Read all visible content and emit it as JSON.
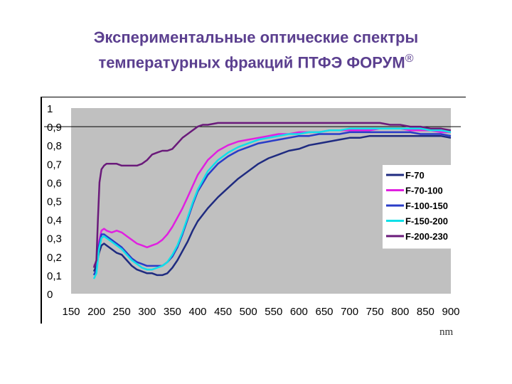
{
  "title": {
    "line1": "Экспериментальные оптические спектры",
    "line2": "температурных фракций ПТФЭ ФОРУМ",
    "reg_mark": "®"
  },
  "unit_label": "nm",
  "chart_data": {
    "type": "line",
    "xlim": [
      150,
      900
    ],
    "ylim": [
      0,
      1
    ],
    "x_ticks": [
      "150",
      "200",
      "250",
      "300",
      "350",
      "400",
      "450",
      "500",
      "550",
      "600",
      "650",
      "700",
      "750",
      "800",
      "850",
      "900"
    ],
    "y_ticks": [
      "0",
      "0,1",
      "0,2",
      "0,3",
      "0,4",
      "0,5",
      "0,6",
      "0,7",
      "0,8",
      "0,9",
      "1"
    ],
    "gridlines_y": [
      0.9
    ],
    "plot_bg": "#c0c0c0",
    "legend_position": "right",
    "series": [
      {
        "name": "F-70",
        "color": "#1f2b80",
        "points": [
          [
            195,
            0.12
          ],
          [
            200,
            0.15
          ],
          [
            205,
            0.22
          ],
          [
            210,
            0.26
          ],
          [
            215,
            0.27
          ],
          [
            220,
            0.26
          ],
          [
            230,
            0.24
          ],
          [
            240,
            0.22
          ],
          [
            250,
            0.21
          ],
          [
            260,
            0.18
          ],
          [
            270,
            0.15
          ],
          [
            280,
            0.13
          ],
          [
            290,
            0.12
          ],
          [
            300,
            0.11
          ],
          [
            310,
            0.11
          ],
          [
            320,
            0.1
          ],
          [
            330,
            0.1
          ],
          [
            340,
            0.11
          ],
          [
            350,
            0.14
          ],
          [
            360,
            0.18
          ],
          [
            370,
            0.23
          ],
          [
            380,
            0.28
          ],
          [
            390,
            0.34
          ],
          [
            400,
            0.39
          ],
          [
            420,
            0.46
          ],
          [
            440,
            0.52
          ],
          [
            460,
            0.57
          ],
          [
            480,
            0.62
          ],
          [
            500,
            0.66
          ],
          [
            520,
            0.7
          ],
          [
            540,
            0.73
          ],
          [
            560,
            0.75
          ],
          [
            580,
            0.77
          ],
          [
            600,
            0.78
          ],
          [
            620,
            0.8
          ],
          [
            640,
            0.81
          ],
          [
            660,
            0.82
          ],
          [
            680,
            0.83
          ],
          [
            700,
            0.84
          ],
          [
            720,
            0.84
          ],
          [
            740,
            0.85
          ],
          [
            760,
            0.85
          ],
          [
            780,
            0.85
          ],
          [
            800,
            0.85
          ],
          [
            820,
            0.85
          ],
          [
            840,
            0.85
          ],
          [
            860,
            0.85
          ],
          [
            880,
            0.85
          ],
          [
            900,
            0.84
          ]
        ]
      },
      {
        "name": "F-70-100",
        "color": "#e020e0",
        "points": [
          [
            195,
            0.15
          ],
          [
            200,
            0.17
          ],
          [
            205,
            0.28
          ],
          [
            210,
            0.34
          ],
          [
            215,
            0.35
          ],
          [
            220,
            0.34
          ],
          [
            230,
            0.33
          ],
          [
            240,
            0.34
          ],
          [
            250,
            0.33
          ],
          [
            260,
            0.31
          ],
          [
            270,
            0.29
          ],
          [
            280,
            0.27
          ],
          [
            290,
            0.26
          ],
          [
            300,
            0.25
          ],
          [
            310,
            0.26
          ],
          [
            320,
            0.27
          ],
          [
            330,
            0.29
          ],
          [
            340,
            0.32
          ],
          [
            350,
            0.36
          ],
          [
            360,
            0.41
          ],
          [
            370,
            0.46
          ],
          [
            380,
            0.52
          ],
          [
            390,
            0.58
          ],
          [
            400,
            0.64
          ],
          [
            420,
            0.72
          ],
          [
            440,
            0.77
          ],
          [
            460,
            0.8
          ],
          [
            480,
            0.82
          ],
          [
            500,
            0.83
          ],
          [
            520,
            0.84
          ],
          [
            540,
            0.85
          ],
          [
            560,
            0.86
          ],
          [
            580,
            0.86
          ],
          [
            600,
            0.87
          ],
          [
            620,
            0.87
          ],
          [
            640,
            0.87
          ],
          [
            660,
            0.88
          ],
          [
            680,
            0.88
          ],
          [
            700,
            0.88
          ],
          [
            720,
            0.88
          ],
          [
            740,
            0.88
          ],
          [
            760,
            0.89
          ],
          [
            780,
            0.89
          ],
          [
            800,
            0.89
          ],
          [
            820,
            0.88
          ],
          [
            840,
            0.88
          ],
          [
            860,
            0.88
          ],
          [
            880,
            0.87
          ],
          [
            900,
            0.87
          ]
        ]
      },
      {
        "name": "F-100-150",
        "color": "#2a3cc8",
        "points": [
          [
            195,
            0.1
          ],
          [
            200,
            0.13
          ],
          [
            205,
            0.26
          ],
          [
            210,
            0.32
          ],
          [
            215,
            0.32
          ],
          [
            220,
            0.31
          ],
          [
            230,
            0.29
          ],
          [
            240,
            0.27
          ],
          [
            250,
            0.25
          ],
          [
            260,
            0.22
          ],
          [
            270,
            0.19
          ],
          [
            280,
            0.17
          ],
          [
            290,
            0.16
          ],
          [
            300,
            0.15
          ],
          [
            310,
            0.15
          ],
          [
            320,
            0.15
          ],
          [
            330,
            0.15
          ],
          [
            340,
            0.17
          ],
          [
            350,
            0.2
          ],
          [
            360,
            0.25
          ],
          [
            370,
            0.32
          ],
          [
            380,
            0.4
          ],
          [
            390,
            0.48
          ],
          [
            400,
            0.55
          ],
          [
            420,
            0.64
          ],
          [
            440,
            0.7
          ],
          [
            460,
            0.74
          ],
          [
            480,
            0.77
          ],
          [
            500,
            0.79
          ],
          [
            520,
            0.81
          ],
          [
            540,
            0.82
          ],
          [
            560,
            0.83
          ],
          [
            580,
            0.84
          ],
          [
            600,
            0.85
          ],
          [
            620,
            0.85
          ],
          [
            640,
            0.86
          ],
          [
            660,
            0.86
          ],
          [
            680,
            0.86
          ],
          [
            700,
            0.87
          ],
          [
            720,
            0.87
          ],
          [
            740,
            0.87
          ],
          [
            760,
            0.87
          ],
          [
            780,
            0.87
          ],
          [
            800,
            0.87
          ],
          [
            820,
            0.87
          ],
          [
            840,
            0.86
          ],
          [
            860,
            0.86
          ],
          [
            880,
            0.86
          ],
          [
            900,
            0.85
          ]
        ]
      },
      {
        "name": "F-150-200",
        "color": "#10e0e8",
        "points": [
          [
            195,
            0.08
          ],
          [
            200,
            0.11
          ],
          [
            205,
            0.24
          ],
          [
            210,
            0.3
          ],
          [
            215,
            0.31
          ],
          [
            220,
            0.3
          ],
          [
            230,
            0.28
          ],
          [
            240,
            0.26
          ],
          [
            250,
            0.24
          ],
          [
            260,
            0.21
          ],
          [
            270,
            0.18
          ],
          [
            280,
            0.16
          ],
          [
            290,
            0.14
          ],
          [
            300,
            0.13
          ],
          [
            310,
            0.13
          ],
          [
            320,
            0.14
          ],
          [
            330,
            0.15
          ],
          [
            340,
            0.17
          ],
          [
            350,
            0.21
          ],
          [
            360,
            0.26
          ],
          [
            370,
            0.33
          ],
          [
            380,
            0.41
          ],
          [
            390,
            0.49
          ],
          [
            400,
            0.56
          ],
          [
            420,
            0.66
          ],
          [
            440,
            0.72
          ],
          [
            460,
            0.76
          ],
          [
            480,
            0.79
          ],
          [
            500,
            0.81
          ],
          [
            520,
            0.83
          ],
          [
            540,
            0.84
          ],
          [
            560,
            0.85
          ],
          [
            580,
            0.86
          ],
          [
            600,
            0.86
          ],
          [
            620,
            0.87
          ],
          [
            640,
            0.87
          ],
          [
            660,
            0.88
          ],
          [
            680,
            0.88
          ],
          [
            700,
            0.89
          ],
          [
            720,
            0.89
          ],
          [
            740,
            0.89
          ],
          [
            760,
            0.89
          ],
          [
            780,
            0.89
          ],
          [
            800,
            0.89
          ],
          [
            820,
            0.89
          ],
          [
            840,
            0.89
          ],
          [
            860,
            0.88
          ],
          [
            880,
            0.88
          ],
          [
            900,
            0.87
          ]
        ]
      },
      {
        "name": "F-200-230",
        "color": "#6a1a7a",
        "points": [
          [
            195,
            0.14
          ],
          [
            200,
            0.18
          ],
          [
            203,
            0.4
          ],
          [
            206,
            0.6
          ],
          [
            210,
            0.67
          ],
          [
            215,
            0.69
          ],
          [
            220,
            0.7
          ],
          [
            230,
            0.7
          ],
          [
            240,
            0.7
          ],
          [
            250,
            0.69
          ],
          [
            260,
            0.69
          ],
          [
            270,
            0.69
          ],
          [
            280,
            0.69
          ],
          [
            290,
            0.7
          ],
          [
            300,
            0.72
          ],
          [
            310,
            0.75
          ],
          [
            320,
            0.76
          ],
          [
            330,
            0.77
          ],
          [
            340,
            0.77
          ],
          [
            350,
            0.78
          ],
          [
            360,
            0.81
          ],
          [
            370,
            0.84
          ],
          [
            380,
            0.86
          ],
          [
            390,
            0.88
          ],
          [
            400,
            0.9
          ],
          [
            410,
            0.91
          ],
          [
            420,
            0.91
          ],
          [
            440,
            0.92
          ],
          [
            460,
            0.92
          ],
          [
            480,
            0.92
          ],
          [
            500,
            0.92
          ],
          [
            520,
            0.92
          ],
          [
            540,
            0.92
          ],
          [
            560,
            0.92
          ],
          [
            580,
            0.92
          ],
          [
            600,
            0.92
          ],
          [
            620,
            0.92
          ],
          [
            640,
            0.92
          ],
          [
            660,
            0.92
          ],
          [
            680,
            0.92
          ],
          [
            700,
            0.92
          ],
          [
            720,
            0.92
          ],
          [
            740,
            0.92
          ],
          [
            760,
            0.92
          ],
          [
            780,
            0.91
          ],
          [
            800,
            0.91
          ],
          [
            820,
            0.9
          ],
          [
            840,
            0.9
          ],
          [
            860,
            0.89
          ],
          [
            880,
            0.89
          ],
          [
            900,
            0.88
          ]
        ]
      }
    ]
  }
}
